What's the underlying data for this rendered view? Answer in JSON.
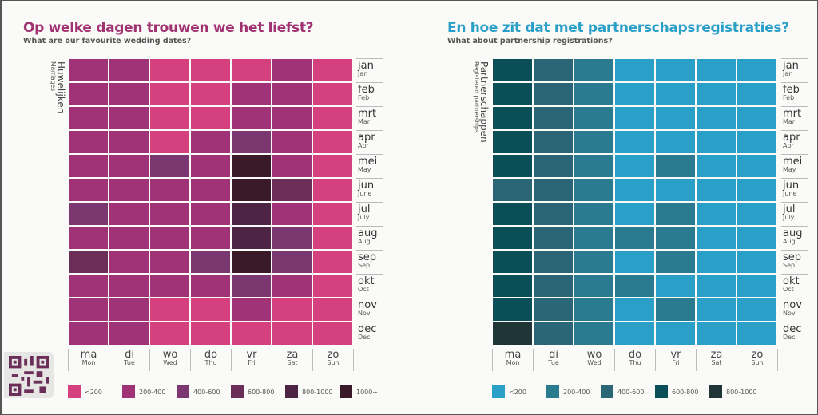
{
  "chart_data": [
    {
      "type": "heatmap",
      "title": "Op welke dagen trouwen we het liefst?",
      "subtitle": "What are our favourite wedding dates?",
      "ylabel": "Huwelijken",
      "ylabel_en": "Marriages",
      "days": [
        [
          "ma",
          "Mon"
        ],
        [
          "di",
          "Tue"
        ],
        [
          "wo",
          "Wed"
        ],
        [
          "do",
          "Thu"
        ],
        [
          "vr",
          "Fri"
        ],
        [
          "za",
          "Sat"
        ],
        [
          "zo",
          "Sun"
        ]
      ],
      "months": [
        [
          "jan",
          "Jan"
        ],
        [
          "feb",
          "Feb"
        ],
        [
          "mrt",
          "Mar"
        ],
        [
          "apr",
          "Apr"
        ],
        [
          "mei",
          "May"
        ],
        [
          "jun",
          "June"
        ],
        [
          "jul",
          "July"
        ],
        [
          "aug",
          "Aug"
        ],
        [
          "sep",
          "Sep"
        ],
        [
          "okt",
          "Oct"
        ],
        [
          "nov",
          "Nov"
        ],
        [
          "dec",
          "Dec"
        ]
      ],
      "bins": [
        "<200",
        "200-400",
        "400-600",
        "600-800",
        "800-1000",
        "1000+"
      ],
      "colors": [
        "#d5407e",
        "#a03278",
        "#7b3870",
        "#6a2e58",
        "#4e2444",
        "#3a1a28"
      ],
      "title_color": "#a03272",
      "values": [
        [
          1,
          1,
          0,
          0,
          0,
          1,
          0
        ],
        [
          1,
          1,
          0,
          0,
          1,
          1,
          0
        ],
        [
          1,
          1,
          0,
          0,
          1,
          1,
          0
        ],
        [
          1,
          1,
          0,
          1,
          2,
          1,
          0
        ],
        [
          1,
          1,
          2,
          1,
          5,
          1,
          0
        ],
        [
          1,
          1,
          1,
          1,
          5,
          3,
          0
        ],
        [
          2,
          1,
          1,
          1,
          4,
          1,
          0
        ],
        [
          1,
          1,
          1,
          1,
          4,
          2,
          0
        ],
        [
          3,
          1,
          1,
          2,
          5,
          2,
          0
        ],
        [
          1,
          1,
          1,
          1,
          2,
          1,
          0
        ],
        [
          1,
          1,
          0,
          0,
          1,
          0,
          0
        ],
        [
          1,
          1,
          0,
          0,
          0,
          0,
          0
        ]
      ]
    },
    {
      "type": "heatmap",
      "title": "En hoe zit dat met partnerschapsregistraties?",
      "subtitle": "What about partnership registrations?",
      "ylabel": "Partnerschappen",
      "ylabel_en": "Registered partnerships",
      "days": [
        [
          "ma",
          "Mon"
        ],
        [
          "di",
          "Tue"
        ],
        [
          "wo",
          "Wed"
        ],
        [
          "do",
          "Thu"
        ],
        [
          "vr",
          "Fri"
        ],
        [
          "za",
          "Sat"
        ],
        [
          "zo",
          "Sun"
        ]
      ],
      "months": [
        [
          "jan",
          "Jan"
        ],
        [
          "feb",
          "Feb"
        ],
        [
          "mrt",
          "Mar"
        ],
        [
          "apr",
          "Apr"
        ],
        [
          "mei",
          "May"
        ],
        [
          "jun",
          "June"
        ],
        [
          "jul",
          "July"
        ],
        [
          "aug",
          "Aug"
        ],
        [
          "sep",
          "Sep"
        ],
        [
          "okt",
          "Oct"
        ],
        [
          "nov",
          "Nov"
        ],
        [
          "dec",
          "Dec"
        ]
      ],
      "bins": [
        "<200",
        "200-400",
        "400-600",
        "600-800",
        "800-1000"
      ],
      "colors": [
        "#2aa0c8",
        "#2a7a90",
        "#2a6676",
        "#0a4f58",
        "#1f3538"
      ],
      "title_color": "#2aa0c8",
      "values": [
        [
          3,
          2,
          1,
          0,
          0,
          0,
          0
        ],
        [
          3,
          2,
          1,
          0,
          0,
          0,
          0
        ],
        [
          3,
          2,
          1,
          0,
          0,
          0,
          0
        ],
        [
          3,
          2,
          1,
          0,
          0,
          0,
          0
        ],
        [
          3,
          2,
          1,
          0,
          1,
          0,
          0
        ],
        [
          2,
          2,
          1,
          0,
          0,
          0,
          0
        ],
        [
          3,
          2,
          1,
          0,
          1,
          0,
          0
        ],
        [
          3,
          2,
          1,
          1,
          1,
          0,
          0
        ],
        [
          3,
          2,
          1,
          0,
          1,
          0,
          0
        ],
        [
          3,
          2,
          1,
          1,
          0,
          0,
          0
        ],
        [
          3,
          2,
          1,
          0,
          1,
          0,
          0
        ],
        [
          4,
          2,
          1,
          0,
          0,
          0,
          0
        ]
      ]
    }
  ]
}
